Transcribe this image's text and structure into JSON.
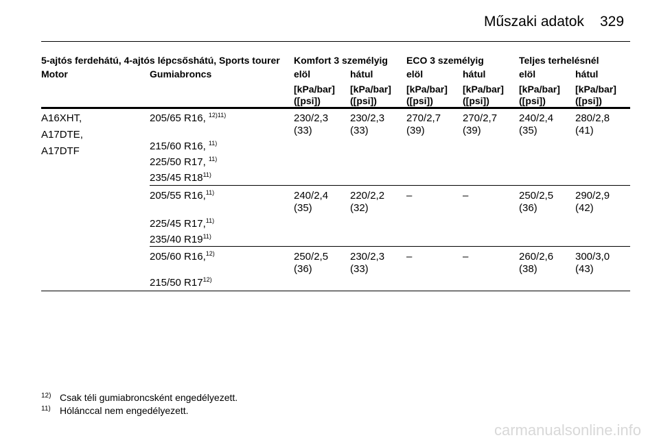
{
  "header": {
    "title": "Műszaki adatok",
    "page": "329"
  },
  "table": {
    "group_headers": [
      "5-ajtós ferdehátú, 4-ajtós lépcsőshátú, Sports tourer",
      "Komfort 3 személyig",
      "ECO 3 személyig",
      "Teljes terhelésnél"
    ],
    "column_headers": [
      "Motor",
      "Gumiabroncs",
      "elöl",
      "hátul",
      "elöl",
      "hátul",
      "elöl",
      "hátul"
    ],
    "units": [
      [
        "[kPa/bar]",
        "([psi])"
      ],
      [
        "[kPa/bar]",
        "([psi])"
      ],
      [
        "[kPa/bar]",
        "([psi])"
      ],
      [
        "[kPa/bar]",
        "([psi])"
      ],
      [
        "[kPa/bar]",
        "([psi])"
      ],
      [
        "[kPa/bar]",
        "([psi])"
      ]
    ],
    "groups": [
      {
        "motor": [
          "A16XHT,",
          "A17DTE,",
          "A17DTF"
        ],
        "tyres": [
          {
            "text": "205/65 R16, ",
            "sup": "12)11)"
          },
          {
            "text": "215/60 R16, ",
            "sup": "11)"
          },
          {
            "text": "225/50 R17, ",
            "sup": "11)"
          },
          {
            "text": "235/45 R18",
            "sup": "11)"
          }
        ],
        "values": [
          [
            "230/2,3",
            "(33)"
          ],
          [
            "230/2,3",
            "(33)"
          ],
          [
            "270/2,7",
            "(39)"
          ],
          [
            "270/2,7",
            "(39)"
          ],
          [
            "240/2,4",
            "(35)"
          ],
          [
            "280/2,8",
            "(41)"
          ]
        ]
      },
      {
        "tyres": [
          {
            "text": "205/55 R16,",
            "sup": "11)"
          },
          {
            "text": "225/45 R17,",
            "sup": "11)"
          },
          {
            "text": "235/40 R19",
            "sup": "11)"
          }
        ],
        "values": [
          [
            "240/2,4",
            "(35)"
          ],
          [
            "220/2,2",
            "(32)"
          ],
          [
            "–"
          ],
          [
            "–"
          ],
          [
            "250/2,5",
            "(36)"
          ],
          [
            "290/2,9",
            "(42)"
          ]
        ]
      },
      {
        "tyres": [
          {
            "text": "205/60 R16,",
            "sup": "12)"
          },
          {
            "text": "215/50 R17",
            "sup": "12)"
          }
        ],
        "values": [
          [
            "250/2,5",
            "(36)"
          ],
          [
            "230/2,3",
            "(33)"
          ],
          [
            "–"
          ],
          [
            "–"
          ],
          [
            "260/2,6",
            "(38)"
          ],
          [
            "300/3,0",
            "(43)"
          ]
        ]
      }
    ]
  },
  "footnotes": [
    {
      "mark": "12)",
      "text": "Csak téli gumiabroncsként engedélyezett."
    },
    {
      "mark": "11)",
      "text": "Hólánccal nem engedélyezett."
    }
  ],
  "watermark": "carmanualsonline.info"
}
